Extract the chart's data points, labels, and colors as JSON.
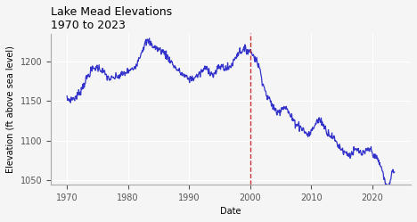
{
  "title": "Lake Mead Elevations",
  "subtitle": "1970 to 2023",
  "xlabel": "Date",
  "ylabel": "Elevation (ft above sea level)",
  "line_color": "#3333cc",
  "line_width": 0.9,
  "drought_line_color": "#cc3333",
  "drought_year": 2000,
  "ylim": [
    1045,
    1235
  ],
  "yticks": [
    1050,
    1100,
    1150,
    1200
  ],
  "background_color": "#f5f5f5",
  "grid_color": "#ffffff",
  "title_fontsize": 9,
  "subtitle_fontsize": 8,
  "axis_fontsize": 7,
  "tick_fontsize": 7,
  "control_points": [
    [
      1970.0,
      1152
    ],
    [
      1971.0,
      1153
    ],
    [
      1972.0,
      1160
    ],
    [
      1973.0,
      1175
    ],
    [
      1974.0,
      1188
    ],
    [
      1975.0,
      1192
    ],
    [
      1976.0,
      1186
    ],
    [
      1977.0,
      1178
    ],
    [
      1978.0,
      1180
    ],
    [
      1979.0,
      1183
    ],
    [
      1980.0,
      1187
    ],
    [
      1981.0,
      1192
    ],
    [
      1982.0,
      1208
    ],
    [
      1983.3,
      1225
    ],
    [
      1984.0,
      1220
    ],
    [
      1985.0,
      1215
    ],
    [
      1986.0,
      1210
    ],
    [
      1987.0,
      1200
    ],
    [
      1988.0,
      1190
    ],
    [
      1989.0,
      1183
    ],
    [
      1990.0,
      1178
    ],
    [
      1991.0,
      1180
    ],
    [
      1992.0,
      1186
    ],
    [
      1993.0,
      1191
    ],
    [
      1994.0,
      1183
    ],
    [
      1995.0,
      1193
    ],
    [
      1996.0,
      1191
    ],
    [
      1997.0,
      1196
    ],
    [
      1998.0,
      1210
    ],
    [
      1999.0,
      1214
    ],
    [
      2000.0,
      1213
    ],
    [
      2000.5,
      1208
    ],
    [
      2001.5,
      1192
    ],
    [
      2002.5,
      1162
    ],
    [
      2003.5,
      1147
    ],
    [
      2004.5,
      1136
    ],
    [
      2005.5,
      1143
    ],
    [
      2006.5,
      1133
    ],
    [
      2007.5,
      1122
    ],
    [
      2008.5,
      1116
    ],
    [
      2009.5,
      1108
    ],
    [
      2010.5,
      1118
    ],
    [
      2011.5,
      1126
    ],
    [
      2012.5,
      1113
    ],
    [
      2013.5,
      1105
    ],
    [
      2014.5,
      1094
    ],
    [
      2015.5,
      1086
    ],
    [
      2016.5,
      1083
    ],
    [
      2017.5,
      1088
    ],
    [
      2018.5,
      1083
    ],
    [
      2019.5,
      1089
    ],
    [
      2020.5,
      1080
    ],
    [
      2021.5,
      1066
    ],
    [
      2022.3,
      1044
    ],
    [
      2022.7,
      1041
    ],
    [
      2023.0,
      1052
    ],
    [
      2023.5,
      1062
    ],
    [
      2023.75,
      1061
    ]
  ]
}
